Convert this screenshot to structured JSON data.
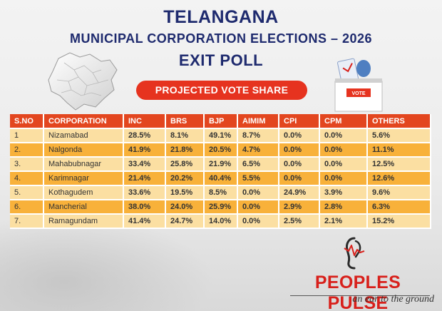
{
  "header": {
    "title_line1": "TELANGANA",
    "title_line2": "MUNICIPAL CORPORATION ELECTIONS – 2026",
    "title_line3": "EXIT POLL",
    "subtitle": "PROJECTED VOTE SHARE"
  },
  "ballot": {
    "box_label": "VOTE"
  },
  "table": {
    "columns": [
      "S.NO",
      "CORPORATION",
      "INC",
      "BRS",
      "BJP",
      "AIMIM",
      "CPI",
      "CPM",
      "OTHERS"
    ],
    "rows": [
      [
        "1",
        "Nizamabad",
        "28.5%",
        "8.1%",
        "49.1%",
        "8.7%",
        "0.0%",
        "0.0%",
        "5.6%"
      ],
      [
        "2.",
        "Nalgonda",
        "41.9%",
        "21.8%",
        "20.5%",
        "4.7%",
        "0.0%",
        "0.0%",
        "11.1%"
      ],
      [
        "3.",
        "Mahabubnagar",
        "33.4%",
        "25.8%",
        "21.9%",
        "6.5%",
        "0.0%",
        "0.0%",
        "12.5%"
      ],
      [
        "4.",
        "Karimnagar",
        "21.4%",
        "20.2%",
        "40.4%",
        "5.5%",
        "0.0%",
        "0.0%",
        "12.6%"
      ],
      [
        "5.",
        "Kothagudem",
        "33.6%",
        "19.5%",
        "8.5%",
        "0.0%",
        "24.9%",
        "3.9%",
        "9.6%"
      ],
      [
        "6.",
        "Mancherial",
        "38.0%",
        "24.0%",
        "25.9%",
        "0.0%",
        "2.9%",
        "2.8%",
        "6.3%"
      ],
      [
        "7.",
        "Ramagundam",
        "41.4%",
        "24.7%",
        "14.0%",
        "0.0%",
        "2.5%",
        "2.1%",
        "15.2%"
      ]
    ]
  },
  "brand": {
    "name": "PEOPLES PULSE",
    "tagline": "an ear to the ground"
  },
  "colors": {
    "title": "#1e2a6e",
    "accent_red": "#e6331f",
    "header_row": "#e3461f",
    "row_light": "#fbdfa2",
    "row_dark": "#f8b13a",
    "brand_red": "#d8201b"
  }
}
